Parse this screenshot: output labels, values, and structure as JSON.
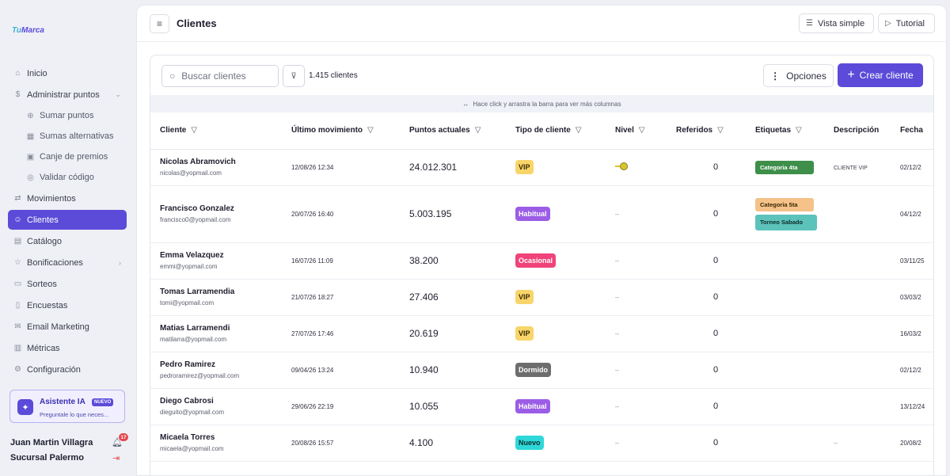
{
  "brand": {
    "logo_part1": "Tu",
    "logo_part2": "Marca"
  },
  "sidebar": {
    "items": [
      {
        "label": "Inicio",
        "icon": "home-icon"
      },
      {
        "label": "Administrar puntos",
        "icon": "dollar-icon"
      },
      {
        "label": "Sumar puntos",
        "icon": "plus-circle-icon"
      },
      {
        "label": "Sumas alternativas",
        "icon": "grid-icon"
      },
      {
        "label": "Canje de premios",
        "icon": "gift-icon"
      },
      {
        "label": "Validar código",
        "icon": "check-circle-icon"
      },
      {
        "label": "Movimientos",
        "icon": "arrows-icon"
      },
      {
        "label": "Clientes",
        "icon": "users-icon"
      },
      {
        "label": "Catálogo",
        "icon": "catalog-icon"
      },
      {
        "label": "Bonificaciones",
        "icon": "star-icon"
      },
      {
        "label": "Sorteos",
        "icon": "ticket-icon"
      },
      {
        "label": "Encuestas",
        "icon": "clipboard-icon"
      },
      {
        "label": "Email Marketing",
        "icon": "mail-icon"
      },
      {
        "label": "Métricas",
        "icon": "chart-icon"
      },
      {
        "label": "Configuración",
        "icon": "gear-icon"
      }
    ],
    "ai": {
      "title": "Asistente IA",
      "badge": "NUEVO",
      "subtitle": "Preguntale lo que neces..."
    },
    "user": {
      "name": "Juan Martin Villagra",
      "branch": "Sucursal Palermo",
      "notifications": "17"
    }
  },
  "header": {
    "title": "Clientes",
    "vista_label": "Vista simple",
    "tutorial_label": "Tutorial"
  },
  "toolbar": {
    "search_placeholder": "Buscar clientes",
    "count": "1.415 clientes",
    "options_label": "Opciones",
    "create_label": "Crear cliente",
    "hint": "Hace click y arrastra la barra para ver más columnas"
  },
  "table": {
    "headers": [
      "Cliente",
      "Último movimiento",
      "Puntos actuales",
      "Tipo de cliente",
      "Nivel",
      "Referidos",
      "Etiquetas",
      "Descripción",
      "Fecha"
    ],
    "rows": [
      {
        "name": "Nicolas Abramovich",
        "email": "nicolas@yopmail.com",
        "last": "12/08/26 12:34",
        "points": "24.012.301",
        "type": "VIP",
        "level": "",
        "refs": "0",
        "tags": [
          "Categoria 4ta"
        ],
        "desc": "CLIENTE VIP",
        "date": "02/12/2"
      },
      {
        "name": "Francisco Gonzalez",
        "email": "francisco0@yopmail.com",
        "last": "20/07/26 16:40",
        "points": "5.003.195",
        "type": "Habitual",
        "level": "–",
        "refs": "0",
        "tags": [
          "Categoria 5ta",
          "Torneo Sabado"
        ],
        "desc": "",
        "date": "04/12/2"
      },
      {
        "name": "Emma Velazquez",
        "email": "emmi@yopmail.com",
        "last": "16/07/26 11:09",
        "points": "38.200",
        "type": "Ocasional",
        "level": "–",
        "refs": "0",
        "tags": [],
        "desc": "",
        "date": "03/11/25"
      },
      {
        "name": "Tomas Larramendia",
        "email": "tomi@yopmail.com",
        "last": "21/07/26 18:27",
        "points": "27.406",
        "type": "VIP",
        "level": "–",
        "refs": "0",
        "tags": [],
        "desc": "",
        "date": "03/03/2"
      },
      {
        "name": "Matias Larramendi",
        "email": "matilarra@yopmail.com",
        "last": "27/07/26 17:46",
        "points": "20.619",
        "type": "VIP",
        "level": "–",
        "refs": "0",
        "tags": [],
        "desc": "",
        "date": "16/03/2"
      },
      {
        "name": "Pedro Ramirez",
        "email": "pedroramirez@yopmail.com",
        "last": "09/04/26 13:24",
        "points": "10.940",
        "type": "Dormido",
        "level": "–",
        "refs": "0",
        "tags": [],
        "desc": "",
        "date": "02/12/2"
      },
      {
        "name": "Diego Cabrosi",
        "email": "dieguito@yopmail.com",
        "last": "29/06/26 22:19",
        "points": "10.055",
        "type": "Habitual",
        "level": "–",
        "refs": "0",
        "tags": [],
        "desc": "",
        "date": "13/12/24"
      },
      {
        "name": "Micaela Torres",
        "email": "micaela@yopmail.com",
        "last": "20/08/26 15:57",
        "points": "4.100",
        "type": "Nuevo",
        "level": "–",
        "refs": "0",
        "tags": [],
        "desc": "–",
        "date": "20/08/2"
      }
    ]
  },
  "colors": {
    "accent": "#5b4bd8",
    "vip": "#f8d56a",
    "habitual": "#9b5de5",
    "ocasional": "#f0437a",
    "dormido": "#6d6d6d",
    "nuevo": "#2ed8d8",
    "tag_green": "#3d8f4a",
    "tag_peach": "#f5c28a",
    "tag_teal": "#5cc3bb"
  }
}
